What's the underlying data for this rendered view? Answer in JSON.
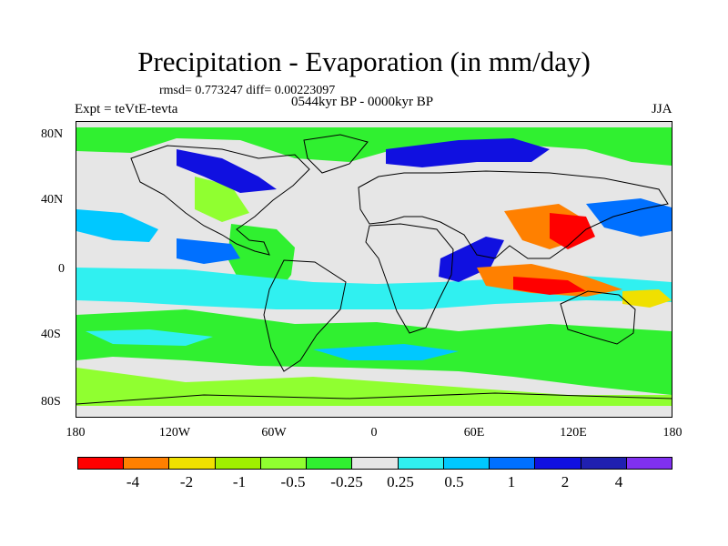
{
  "title": "Precipitation - Evaporation (in mm/day)",
  "stats": "rmsd= 0.773247 diff= 0.00223097",
  "period": "0544kyr BP - 0000kyr BP",
  "experiment": "Expt = teVtE-tevta",
  "season": "JJA",
  "axes": {
    "y_labels": [
      "80N",
      "40N",
      "0",
      "40S",
      "80S"
    ],
    "x_labels": [
      "180",
      "120W",
      "60W",
      "0",
      "60E",
      "120E",
      "180"
    ]
  },
  "colorbar": {
    "colors": [
      "#ff0000",
      "#ff8000",
      "#f0e000",
      "#a0f000",
      "#90ff30",
      "#30f030",
      "#e6e6e6",
      "#30f0f0",
      "#00c8ff",
      "#0070ff",
      "#1010e0",
      "#2020b0",
      "#8030f0"
    ],
    "labels": [
      "-4",
      "-2",
      "-1",
      "-0.5",
      "-0.25",
      "0.25",
      "0.5",
      "1",
      "2",
      "4"
    ]
  }
}
